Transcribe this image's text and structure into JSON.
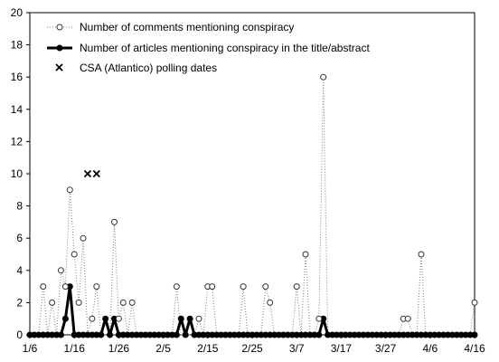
{
  "chart_data": {
    "type": "line",
    "title": "",
    "xlabel": "",
    "ylabel": "",
    "x_start": "1/6",
    "x_days": 101,
    "xlim_days": [
      0,
      100
    ],
    "ylim": [
      0,
      20
    ],
    "yticks": [
      0,
      2,
      4,
      6,
      8,
      10,
      12,
      14,
      16,
      18,
      20
    ],
    "xticks": [
      {
        "label": "1/6",
        "day": 0
      },
      {
        "label": "1/16",
        "day": 10
      },
      {
        "label": "1/26",
        "day": 20
      },
      {
        "label": "2/5",
        "day": 30
      },
      {
        "label": "2/15",
        "day": 40
      },
      {
        "label": "2/25",
        "day": 50
      },
      {
        "label": "3/7",
        "day": 60
      },
      {
        "label": "3/17",
        "day": 70
      },
      {
        "label": "3/27",
        "day": 80
      },
      {
        "label": "4/6",
        "day": 90
      },
      {
        "label": "4/16",
        "day": 100
      }
    ],
    "legend_position": "top-left",
    "series": [
      {
        "name": "Number of comments mentioning conspiracy",
        "style": "dotted-open-circle",
        "color": "#808080",
        "points": [
          [
            3,
            3
          ],
          [
            5,
            2
          ],
          [
            7,
            4
          ],
          [
            8,
            3
          ],
          [
            9,
            9
          ],
          [
            10,
            5
          ],
          [
            11,
            2
          ],
          [
            12,
            6
          ],
          [
            14,
            1
          ],
          [
            15,
            3
          ],
          [
            19,
            7
          ],
          [
            20,
            1
          ],
          [
            21,
            2
          ],
          [
            23,
            2
          ],
          [
            33,
            3
          ],
          [
            38,
            1
          ],
          [
            40,
            3
          ],
          [
            41,
            3
          ],
          [
            48,
            3
          ],
          [
            53,
            3
          ],
          [
            54,
            2
          ],
          [
            60,
            3
          ],
          [
            62,
            5
          ],
          [
            65,
            1
          ],
          [
            66,
            16
          ],
          [
            84,
            1
          ],
          [
            85,
            1
          ],
          [
            88,
            5
          ],
          [
            100,
            2
          ]
        ]
      },
      {
        "name": "Number of articles mentioning conspiracy in the title/abstract",
        "style": "solid-bold-filled-circle",
        "color": "#000000",
        "points": [
          [
            8,
            1
          ],
          [
            9,
            3
          ],
          [
            17,
            1
          ],
          [
            19,
            1
          ],
          [
            34,
            1
          ],
          [
            36,
            1
          ],
          [
            66,
            1
          ]
        ]
      },
      {
        "name": "CSA (Atlantico) polling dates",
        "style": "x-marker",
        "color": "#000000",
        "points": [
          [
            13,
            10
          ],
          [
            15,
            10
          ]
        ]
      }
    ]
  }
}
